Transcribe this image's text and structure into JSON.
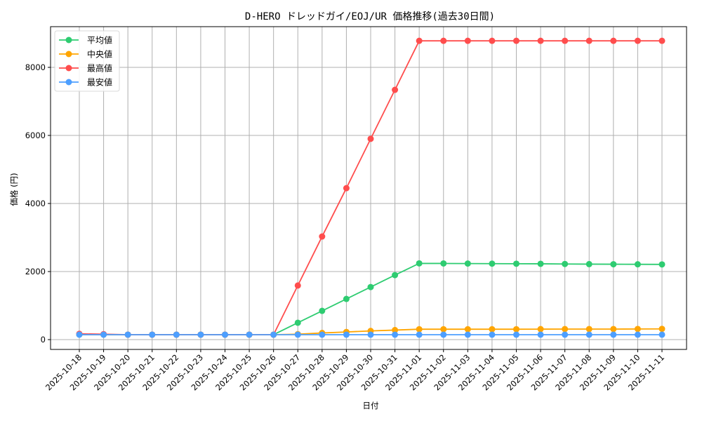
{
  "chart_data": {
    "type": "line",
    "title": "D-HERO ドレッドガイ/EOJ/UR 価格推移(過去30日間)",
    "xlabel": "日付",
    "ylabel": "価格 (円)",
    "ylim": [
      -300,
      9200
    ],
    "yticks": [
      0,
      2000,
      4000,
      6000,
      8000
    ],
    "grid": true,
    "legend_position": "upper left",
    "categories": [
      "2025-10-18",
      "2025-10-19",
      "2025-10-20",
      "2025-10-21",
      "2025-10-22",
      "2025-10-23",
      "2025-10-24",
      "2025-10-25",
      "2025-10-26",
      "2025-10-27",
      "2025-10-28",
      "2025-10-29",
      "2025-10-30",
      "2025-10-31",
      "2025-11-01",
      "2025-11-02",
      "2025-11-03",
      "2025-11-04",
      "2025-11-05",
      "2025-11-06",
      "2025-11-07",
      "2025-11-08",
      "2025-11-09",
      "2025-11-10",
      "2025-11-11"
    ],
    "series": [
      {
        "name": "平均値",
        "color": "#2ecc71",
        "values": [
          150,
          148,
          145,
          145,
          145,
          145,
          145,
          145,
          145,
          495,
          845,
          1195,
          1545,
          1895,
          2240,
          2238,
          2235,
          2232,
          2230,
          2228,
          2222,
          2218,
          2215,
          2213,
          2210
        ]
      },
      {
        "name": "中央値",
        "color": "#ffa500",
        "values": [
          150,
          148,
          145,
          145,
          145,
          145,
          145,
          145,
          145,
          160,
          195,
          225,
          255,
          280,
          305,
          305,
          305,
          305,
          305,
          308,
          310,
          310,
          310,
          312,
          315
        ]
      },
      {
        "name": "最高値",
        "color": "#ff4d4d",
        "values": [
          170,
          160,
          145,
          145,
          145,
          145,
          145,
          145,
          145,
          1590,
          3030,
          4450,
          5900,
          7340,
          8780,
          8780,
          8780,
          8780,
          8780,
          8780,
          8780,
          8780,
          8780,
          8780,
          8780
        ]
      },
      {
        "name": "最安値",
        "color": "#4d9fff",
        "values": [
          145,
          145,
          145,
          145,
          145,
          145,
          145,
          145,
          145,
          145,
          145,
          145,
          145,
          145,
          145,
          145,
          145,
          145,
          145,
          145,
          145,
          145,
          145,
          145,
          145
        ]
      }
    ]
  }
}
